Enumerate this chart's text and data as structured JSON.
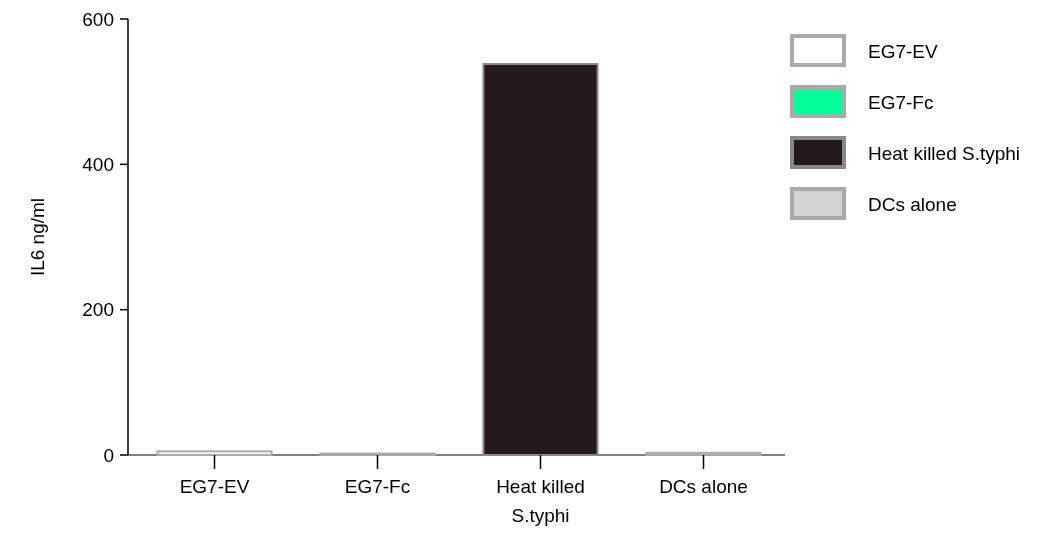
{
  "chart_data": {
    "type": "bar",
    "ylabel": "IL6 ng/ml",
    "stacked": true,
    "categories": [
      "EG7-EV",
      "EG7-Fc",
      "Heat killed S.typhi",
      "DCs alone"
    ],
    "series": [
      {
        "name": "EG7-EV",
        "color": "#ffffff",
        "values": [
          5,
          null,
          null,
          null
        ]
      },
      {
        "name": "EG7-Fc",
        "color": "#00ff99",
        "values": [
          null,
          2,
          null,
          null
        ]
      },
      {
        "name": "Heat killed S.typhi",
        "color": "#231b1b",
        "values": [
          null,
          null,
          538,
          null
        ]
      },
      {
        "name": "DCs alone",
        "color": "#d3d3d3",
        "values": [
          null,
          null,
          null,
          3
        ]
      }
    ],
    "ylim": [
      0,
      600
    ],
    "yticks": [
      0,
      200,
      400,
      600
    ],
    "legend": "top right"
  }
}
